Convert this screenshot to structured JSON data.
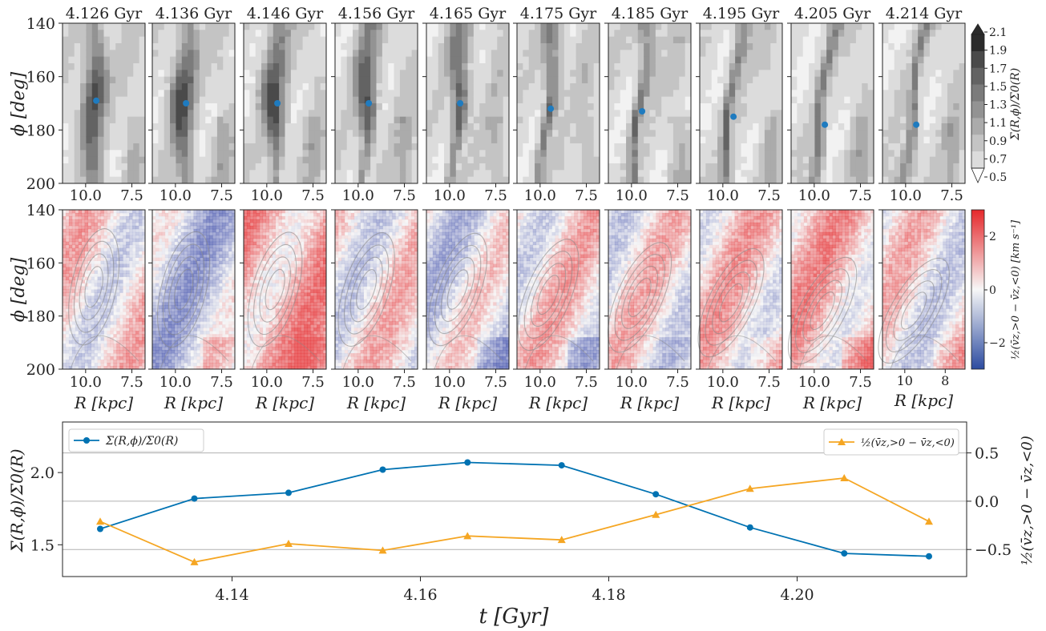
{
  "snapshots": [
    "4.126 Gyr",
    "4.136 Gyr",
    "4.146 Gyr",
    "4.156 Gyr",
    "4.165 Gyr",
    "4.175 Gyr",
    "4.185 Gyr",
    "4.195 Gyr",
    "4.205 Gyr",
    "4.214 Gyr"
  ],
  "panel_axes": {
    "phi_label": "ϕ [deg]",
    "r_label": "R [kpc]",
    "phi_ticks": [
      "140",
      "160",
      "180",
      "200"
    ],
    "r_ticks": [
      "10.0",
      "7.5"
    ],
    "r_ticks_last": [
      "10",
      "8"
    ]
  },
  "density_colorbar": {
    "label": "Σ(R,ϕ)/Σ0(R)",
    "ticks": [
      "2.1",
      "1.9",
      "1.7",
      "1.5",
      "1.3",
      "1.1",
      "0.9",
      "0.7",
      "0.5"
    ],
    "colors": [
      "#2b2b2b",
      "#4a4a4a",
      "#636363",
      "#7b7b7b",
      "#939393",
      "#ababab",
      "#c4c4c4",
      "#dcdcdc",
      "#f2f2f2"
    ]
  },
  "velocity_colorbar": {
    "label": "½(v̄z,>0 − v̄z,<0) [km s⁻¹]",
    "ticks": [
      "2",
      "0",
      "−2"
    ],
    "colors": {
      "max": "#d7191c",
      "mid": "#f7f7f7",
      "min": "#2c4ba0"
    }
  },
  "marker_color": "#1f7bbf",
  "chart_data": {
    "type": "line",
    "x": [
      4.126,
      4.136,
      4.146,
      4.156,
      4.165,
      4.175,
      4.185,
      4.195,
      4.205,
      4.214
    ],
    "xlabel": "t [Gyr]",
    "x_ticks": [
      "4.14",
      "4.16",
      "4.18",
      "4.20"
    ],
    "xlim": [
      4.122,
      4.218
    ],
    "grid": "horizontal",
    "series": [
      {
        "name": "Σ(R,ϕ)/Σ0(R)",
        "axis": "left",
        "color": "#0072b2",
        "marker": "circle",
        "values": [
          1.61,
          1.82,
          1.86,
          2.02,
          2.07,
          2.05,
          1.85,
          1.62,
          1.44,
          1.42
        ]
      },
      {
        "name": "½(v̄z,>0 − v̄z,<0)",
        "axis": "right",
        "color": "#f5a623",
        "marker": "triangle",
        "values": [
          -0.21,
          -0.63,
          -0.44,
          -0.51,
          -0.36,
          -0.4,
          -0.14,
          0.13,
          0.24,
          -0.21
        ]
      }
    ],
    "ylabel": "Σ(R,ϕ)/Σ0(R)",
    "ylim": [
      1.28,
      2.35
    ],
    "y_ticks": [
      "1.5",
      "2.0"
    ],
    "ylabel_right": "½(v̄z,>0 − v̄z,<0)",
    "ylim_right": [
      -0.78,
      0.82
    ],
    "y_ticks_right": [
      "0.5",
      "0.0",
      "−0.5"
    ],
    "legend_left": "upper-left",
    "legend_right": "upper-right"
  },
  "marker_phi": [
    169,
    170,
    170,
    170,
    170,
    172,
    173,
    175,
    178,
    178
  ]
}
